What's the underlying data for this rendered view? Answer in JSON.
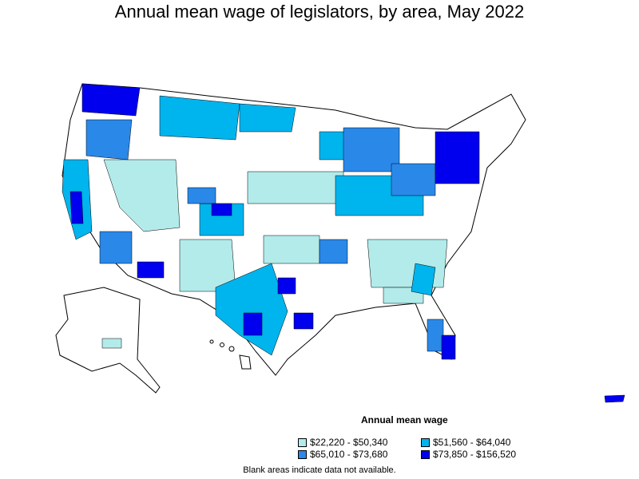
{
  "title": "Annual mean wage of legislators, by area, May 2022",
  "legend": {
    "title": "Annual mean wage",
    "items": [
      {
        "label": "$22,220 - $50,340",
        "color": "#b2ebea"
      },
      {
        "label": "$51,560 - $64,040",
        "color": "#00b4ee"
      },
      {
        "label": "$65,010 - $73,680",
        "color": "#2a88e8"
      },
      {
        "label": "$73,850 - $156,520",
        "color": "#0000ee"
      }
    ]
  },
  "note": "Blank areas indicate data not available.",
  "map_colors": {
    "blank": "#ffffff",
    "outline": "#000000"
  }
}
